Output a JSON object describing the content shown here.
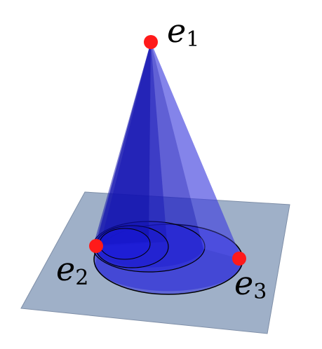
{
  "diagram": {
    "vertices": [
      {
        "id": "e1",
        "base": "e",
        "sub": "1"
      },
      {
        "id": "e2",
        "base": "e",
        "sub": "2"
      },
      {
        "id": "e3",
        "base": "e",
        "sub": "3"
      }
    ],
    "colors": {
      "plane": "#9fb0c8",
      "cone": "#1f1fd0",
      "vertex": "#ff1a1a",
      "outline": "#000000"
    }
  }
}
